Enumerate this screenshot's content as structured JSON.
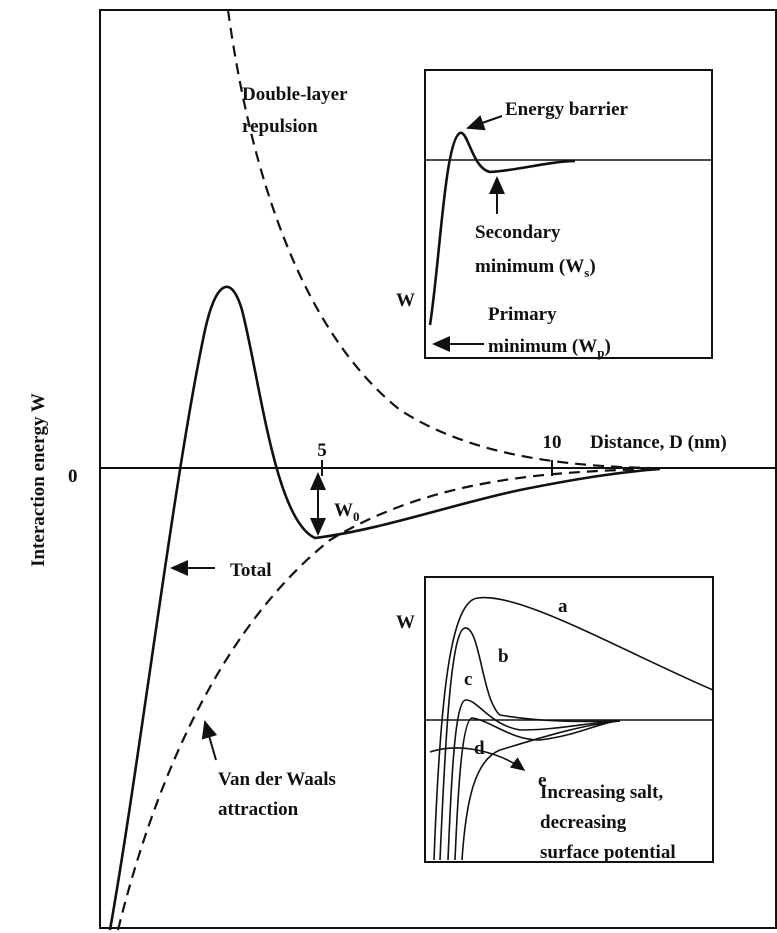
{
  "main": {
    "y_axis_label": "Interaction energy W",
    "zero_label": "0",
    "tick_5": "5",
    "tick_10": "10",
    "x_axis_label": "Distance, D (nm)",
    "double_layer": [
      "Double-layer",
      "repulsion"
    ],
    "w0": {
      "text": "W",
      "sub": "0"
    },
    "total": "Total",
    "van_der_waals": [
      "Van der Waals",
      "attraction"
    ]
  },
  "inset_top": {
    "energy_barrier": "Energy barrier",
    "secondary": {
      "line1": "Secondary",
      "line2": "minimum (W",
      "sub": "s",
      "end": ")"
    },
    "w": "W",
    "primary": {
      "line1": "Primary",
      "line2": "minimum (W",
      "sub": "p",
      "end": ")"
    }
  },
  "inset_bottom": {
    "w": "W",
    "curves": [
      "a",
      "b",
      "c",
      "d",
      "e"
    ],
    "note": [
      "Increasing salt,",
      "decreasing",
      "surface potential"
    ]
  }
}
